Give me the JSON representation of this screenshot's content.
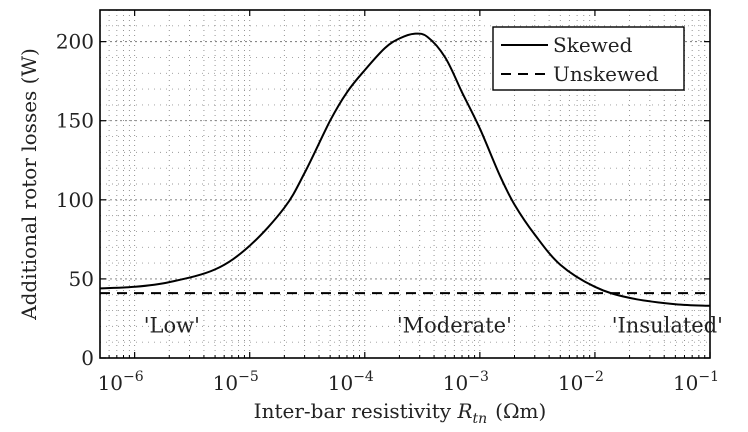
{
  "chart_data": {
    "type": "line",
    "title": "",
    "xlabel": "Inter-bar resistivity R_tn (Ωm)",
    "xlabel_parts": {
      "prefix": "Inter-bar resistivity ",
      "symbol": "R",
      "subscript": "tn",
      "unit": "(Ωm)"
    },
    "ylabel": "Additional rotor losses (W)",
    "xscale": "log",
    "xlim": [
      5e-07,
      0.1
    ],
    "ylim": [
      0,
      220
    ],
    "grid": true,
    "x_ticks": [
      {
        "value": 1e-06,
        "base": "10",
        "exp": "−6"
      },
      {
        "value": 1e-05,
        "base": "10",
        "exp": "−5"
      },
      {
        "value": 0.0001,
        "base": "10",
        "exp": "−4"
      },
      {
        "value": 0.001,
        "base": "10",
        "exp": "−3"
      },
      {
        "value": 0.01,
        "base": "10",
        "exp": "−2"
      },
      {
        "value": 0.1,
        "base": "10",
        "exp": "−1"
      }
    ],
    "y_ticks": [
      0,
      50,
      100,
      150,
      200
    ],
    "legend": {
      "placement": "top-right"
    },
    "series": [
      {
        "name": "Skewed",
        "style": "solid",
        "color": "#000000",
        "x": [
          5e-07,
          1e-06,
          2e-06,
          5e-06,
          1e-05,
          2e-05,
          3e-05,
          5e-05,
          7e-05,
          0.0001,
          0.00015,
          0.0002,
          0.00027,
          0.00035,
          0.0005,
          0.0007,
          0.001,
          0.0015,
          0.002,
          0.003,
          0.005,
          0.01,
          0.02,
          0.05,
          0.1
        ],
        "y": [
          44,
          45,
          48,
          56,
          71,
          95,
          117,
          150,
          168,
          182,
          196,
          202,
          205,
          203,
          190,
          168,
          145,
          115,
          97,
          78,
          59,
          45,
          38,
          34,
          33
        ]
      },
      {
        "name": "Unskewed",
        "style": "dashed",
        "color": "#000000",
        "x": [
          5e-07,
          0.1
        ],
        "y": [
          41,
          41
        ]
      }
    ],
    "annotations": [
      {
        "text": "'Low'",
        "x": 1.2e-06,
        "y": 16
      },
      {
        "text": "'Moderate'",
        "x": 0.00019,
        "y": 16
      },
      {
        "text": "'Insulated'",
        "x": 0.014,
        "y": 16
      }
    ]
  }
}
